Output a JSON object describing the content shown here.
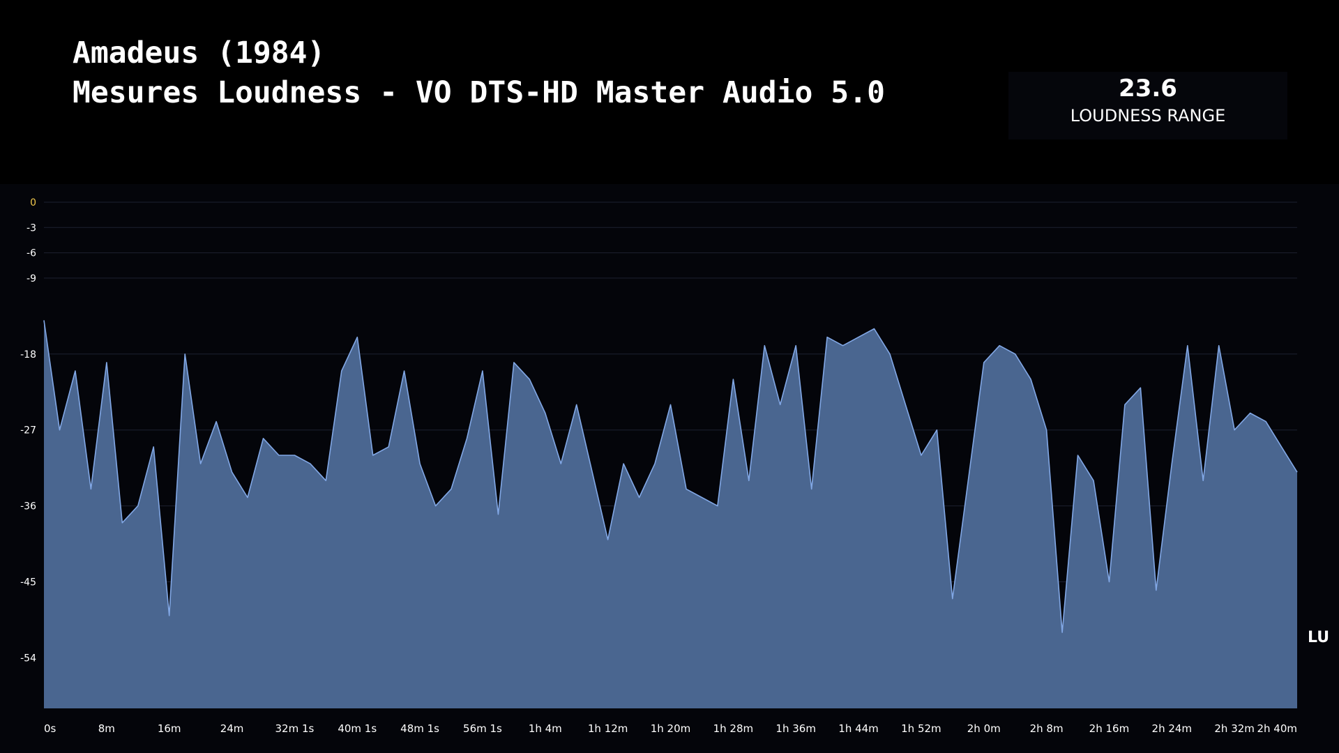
{
  "header": {
    "title_line1": "Amadeus (1984)",
    "title_line2": "Mesures Loudness - VO DTS-HD Master Audio 5.0"
  },
  "stat": {
    "value": "23.6",
    "label": "LOUDNESS RANGE"
  },
  "colors": {
    "background": "#000000",
    "panel": "#04050a",
    "line": "#82a8e6",
    "area": "#4a6690",
    "grid": "#1d2130",
    "tick_text": "#ffffff",
    "zero_tick_text": "#f2c94c"
  },
  "chart_data": {
    "type": "area",
    "unit": "LU",
    "ylim": [
      -60,
      0
    ],
    "y_ticks": [
      0,
      -3,
      -6,
      -9,
      -18,
      -27,
      -36,
      -45,
      -54
    ],
    "x_tick_labels": [
      "0s",
      "8m",
      "16m",
      "24m",
      "32m 1s",
      "40m 1s",
      "48m 1s",
      "56m 1s",
      "1h 4m",
      "1h 12m",
      "1h 20m",
      "1h 28m",
      "1h 36m",
      "1h 44m",
      "1h 52m",
      "2h 0m",
      "2h 8m",
      "2h 16m",
      "2h 24m",
      "2h 32m",
      "2h 40m"
    ],
    "x_range_minutes": [
      0,
      160
    ],
    "grid": true,
    "series": [
      {
        "x_minutes": [
          0,
          2,
          4,
          6,
          8,
          10,
          12,
          14,
          16,
          18,
          20,
          22,
          24,
          26,
          28,
          30,
          32,
          34,
          36,
          38,
          40,
          42,
          44,
          46,
          48,
          50,
          52,
          54,
          56,
          58,
          60,
          62,
          64,
          66,
          68,
          70,
          72,
          74,
          76,
          78,
          80,
          82,
          84,
          86,
          88,
          90,
          92,
          94,
          96,
          98,
          100,
          102,
          104,
          106,
          108,
          110,
          112,
          114,
          116,
          118,
          120,
          122,
          124,
          126,
          128,
          130,
          132,
          134,
          136,
          138,
          140,
          142,
          144,
          146,
          148,
          150,
          152,
          154,
          156,
          158,
          160
        ],
        "values": [
          -14,
          -27,
          -20,
          -34,
          -19,
          -38,
          -36,
          -29,
          -49,
          -18,
          -31,
          -26,
          -32,
          -35,
          -28,
          -30,
          -30,
          -31,
          -33,
          -20,
          -16,
          -30,
          -29,
          -20,
          -31,
          -36,
          -34,
          -28,
          -20,
          -37,
          -19,
          -21,
          -25,
          -31,
          -24,
          -32,
          -40,
          -31,
          -35,
          -31,
          -24,
          -34,
          -35,
          -36,
          -21,
          -33,
          -17,
          -24,
          -17,
          -34,
          -16,
          -17,
          -16,
          -15,
          -18,
          -24,
          -30,
          -27,
          -47,
          -33,
          -19,
          -17,
          -18,
          -21,
          -27,
          -51,
          -30,
          -33,
          -45,
          -24,
          -22,
          -46,
          -31,
          -17,
          -33,
          -17,
          -27,
          -25,
          -26,
          -29,
          -32
        ]
      }
    ]
  }
}
